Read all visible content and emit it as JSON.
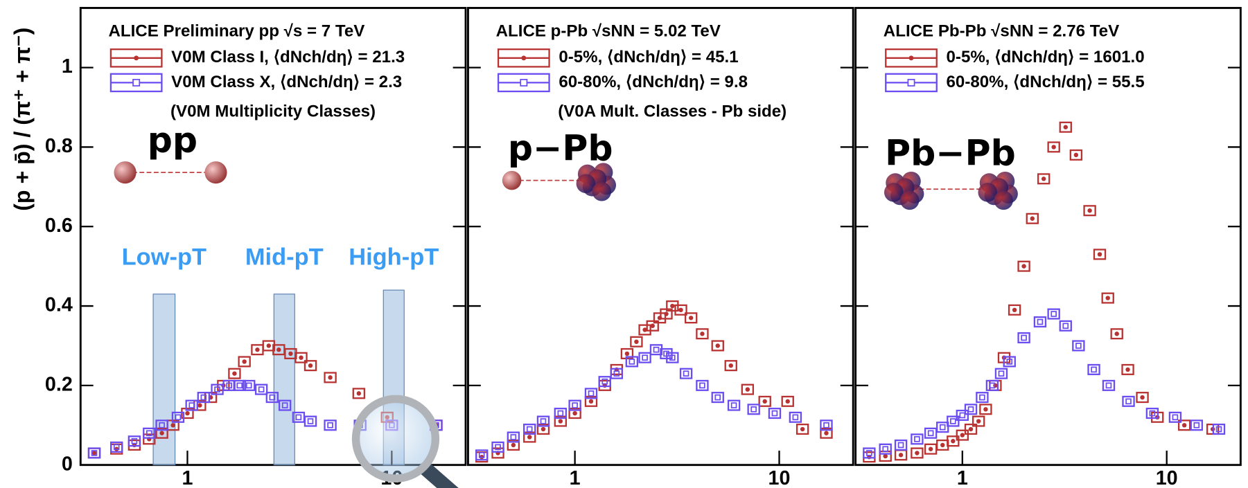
{
  "chart_data": [
    {
      "type": "scatter",
      "title": "ALICE Preliminary pp √s = 7 TeV",
      "subtitle": "(V0M Multiplicity Classes)",
      "system": "pp",
      "y_label": "(p + p̄) / (π⁺ + π⁻)",
      "xlim": [
        0.3,
        23
      ],
      "ylim": [
        0,
        1.15
      ],
      "log_x": true,
      "xticks": [
        1,
        10
      ],
      "yticks": [
        0,
        0.2,
        0.4,
        0.6,
        0.8,
        1
      ],
      "regions": [
        {
          "label": "Low-pT",
          "xlim": [
            0.68,
            0.87
          ],
          "ymax": 0.43
        },
        {
          "label": "Mid-pT",
          "xlim": [
            2.65,
            3.35
          ],
          "ymax": 0.43
        },
        {
          "label": "High-pT",
          "xlim": [
            9.1,
            11.5
          ],
          "ymax": 0.44
        }
      ],
      "series": [
        {
          "name": "V0M Class I, ⟨dNch/dη⟩ = 21.3",
          "color": "#b83232",
          "marker": "circle",
          "x": [
            0.35,
            0.45,
            0.55,
            0.65,
            0.75,
            0.85,
            1.0,
            1.15,
            1.3,
            1.5,
            1.7,
            1.9,
            2.2,
            2.5,
            2.8,
            3.2,
            3.6,
            4.0,
            5.0,
            6.9,
            9.5,
            16.5
          ],
          "values": [
            0.03,
            0.04,
            0.05,
            0.065,
            0.08,
            0.1,
            0.13,
            0.15,
            0.17,
            0.2,
            0.23,
            0.26,
            0.29,
            0.3,
            0.29,
            0.28,
            0.27,
            0.25,
            0.22,
            0.18,
            0.12,
            0.1
          ]
        },
        {
          "name": "V0M Class X, ⟨dNch/dη⟩ = 2.3",
          "color": "#6a4cf0",
          "marker": "square",
          "x": [
            0.35,
            0.45,
            0.55,
            0.65,
            0.75,
            0.9,
            1.05,
            1.2,
            1.4,
            1.6,
            1.8,
            2.0,
            2.3,
            2.6,
            3.0,
            3.5,
            4.0,
            5.0,
            7.0,
            10.0,
            16.5
          ],
          "values": [
            0.03,
            0.045,
            0.06,
            0.08,
            0.1,
            0.12,
            0.15,
            0.17,
            0.19,
            0.2,
            0.2,
            0.2,
            0.19,
            0.17,
            0.15,
            0.12,
            0.11,
            0.1,
            0.1,
            0.1,
            0.1
          ]
        }
      ]
    },
    {
      "type": "scatter",
      "title": "ALICE p-Pb √sNN = 5.02 TeV",
      "subtitle": "(V0A Mult. Classes - Pb side)",
      "system": "p−Pb",
      "xlim": [
        0.3,
        23
      ],
      "ylim": [
        0,
        1.15
      ],
      "log_x": true,
      "xticks": [
        1,
        10
      ],
      "yticks": [
        0,
        0.2,
        0.4,
        0.6,
        0.8,
        1
      ],
      "series": [
        {
          "name": "0-5%, ⟨dNch/dη⟩ = 45.1",
          "color": "#b83232",
          "marker": "circle",
          "x": [
            0.35,
            0.42,
            0.5,
            0.6,
            0.7,
            0.85,
            1.0,
            1.2,
            1.4,
            1.6,
            1.8,
            2.0,
            2.2,
            2.4,
            2.6,
            2.8,
            3.0,
            3.3,
            3.7,
            4.2,
            5.0,
            5.8,
            7.0,
            8.5,
            11.0,
            13.0,
            17.0
          ],
          "values": [
            0.02,
            0.03,
            0.05,
            0.07,
            0.09,
            0.11,
            0.13,
            0.16,
            0.2,
            0.24,
            0.28,
            0.31,
            0.34,
            0.35,
            0.37,
            0.38,
            0.4,
            0.39,
            0.37,
            0.33,
            0.3,
            0.25,
            0.19,
            0.16,
            0.16,
            0.09,
            0.08
          ]
        },
        {
          "name": "60-80%, ⟨dNch/dη⟩ = 9.8",
          "color": "#6a4cf0",
          "marker": "square",
          "x": [
            0.35,
            0.42,
            0.5,
            0.6,
            0.7,
            0.85,
            1.0,
            1.2,
            1.4,
            1.6,
            1.9,
            2.2,
            2.5,
            2.8,
            3.0,
            3.5,
            4.2,
            5.0,
            6.0,
            7.5,
            9.5,
            12.0,
            17.0
          ],
          "values": [
            0.025,
            0.045,
            0.07,
            0.09,
            0.11,
            0.13,
            0.15,
            0.18,
            0.21,
            0.23,
            0.26,
            0.27,
            0.29,
            0.28,
            0.27,
            0.23,
            0.2,
            0.17,
            0.15,
            0.14,
            0.13,
            0.12,
            0.1
          ]
        }
      ]
    },
    {
      "type": "scatter",
      "title": "ALICE Pb-Pb √sNN = 2.76 TeV",
      "system": "Pb−Pb",
      "xlim": [
        0.3,
        23
      ],
      "ylim": [
        0,
        1.15
      ],
      "log_x": true,
      "xticks": [
        1,
        10
      ],
      "yticks": [
        0,
        0.2,
        0.4,
        0.6,
        0.8,
        1
      ],
      "series": [
        {
          "name": "0-5%, ⟨dNch/dη⟩ = 1601.0",
          "color": "#b83232",
          "marker": "circle",
          "x": [
            0.35,
            0.42,
            0.5,
            0.6,
            0.7,
            0.8,
            0.9,
            1.0,
            1.1,
            1.2,
            1.3,
            1.45,
            1.6,
            1.8,
            2.0,
            2.2,
            2.5,
            2.8,
            3.2,
            3.6,
            4.2,
            4.7,
            5.15,
            5.7,
            6.45,
            7.6,
            9.0,
            12.2,
            16.8
          ],
          "values": [
            0.02,
            0.022,
            0.025,
            0.03,
            0.04,
            0.05,
            0.06,
            0.075,
            0.09,
            0.11,
            0.14,
            0.2,
            0.27,
            0.39,
            0.5,
            0.62,
            0.72,
            0.8,
            0.85,
            0.78,
            0.64,
            0.53,
            0.42,
            0.33,
            0.24,
            0.17,
            0.12,
            0.1,
            0.09
          ]
        },
        {
          "name": "60-80%, ⟨dNch/dη⟩ = 55.5",
          "color": "#6a4cf0",
          "marker": "square",
          "x": [
            0.35,
            0.42,
            0.5,
            0.6,
            0.7,
            0.8,
            0.9,
            1.0,
            1.1,
            1.25,
            1.4,
            1.55,
            1.7,
            2.0,
            2.4,
            2.8,
            3.2,
            3.7,
            4.4,
            5.2,
            6.5,
            8.5,
            11.0,
            14.0,
            18.0
          ],
          "values": [
            0.03,
            0.04,
            0.05,
            0.065,
            0.08,
            0.095,
            0.11,
            0.125,
            0.14,
            0.17,
            0.2,
            0.23,
            0.26,
            0.32,
            0.36,
            0.38,
            0.35,
            0.3,
            0.24,
            0.2,
            0.16,
            0.13,
            0.12,
            0.1,
            0.09
          ]
        }
      ]
    }
  ]
}
